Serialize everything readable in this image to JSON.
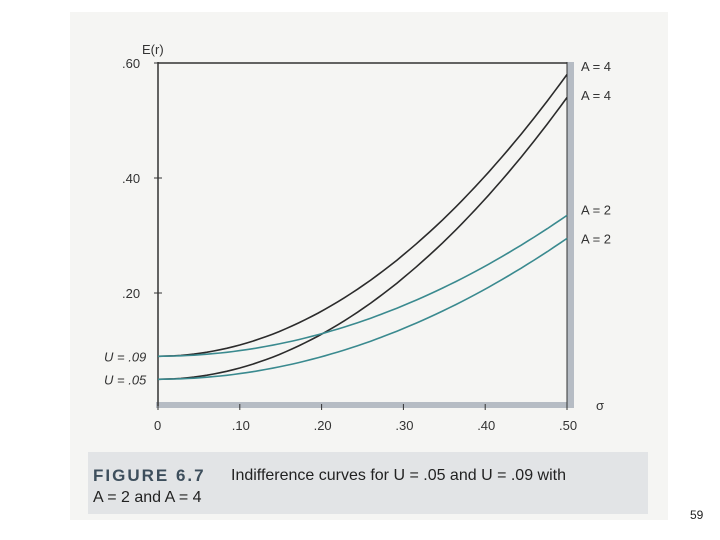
{
  "chart_data": {
    "type": "line",
    "ylabel": "E(r)",
    "xlabel": "σ",
    "xlim": [
      0,
      0.5
    ],
    "ylim": [
      0.0,
      0.6
    ],
    "x_ticks": [
      "0",
      ".10",
      ".20",
      ".30",
      ".40",
      ".50"
    ],
    "y_ticks": [
      ".60",
      ".40",
      ".20"
    ],
    "start_labels": [
      "U = .09",
      "U = .05"
    ],
    "grid": false,
    "series": [
      {
        "name": "A = 4",
        "utility": 0.09,
        "risk_aversion": 4,
        "color": "#2b2b2b",
        "end_value": 0.59
      },
      {
        "name": "A = 4",
        "utility": 0.05,
        "risk_aversion": 4,
        "color": "#2b2b2b",
        "end_value": 0.55
      },
      {
        "name": "A = 2",
        "utility": 0.09,
        "risk_aversion": 2,
        "color": "#3a8a8f",
        "end_value": 0.34
      },
      {
        "name": "A = 2",
        "utility": 0.05,
        "risk_aversion": 2,
        "color": "#3a8a8f",
        "end_value": 0.3
      }
    ]
  },
  "caption": {
    "figure_label": "FIGURE 6.7",
    "text": "Indifference curves for U = .05 and U = .09 with",
    "line2": "A = 2 and A = 4"
  },
  "page_number": "59"
}
